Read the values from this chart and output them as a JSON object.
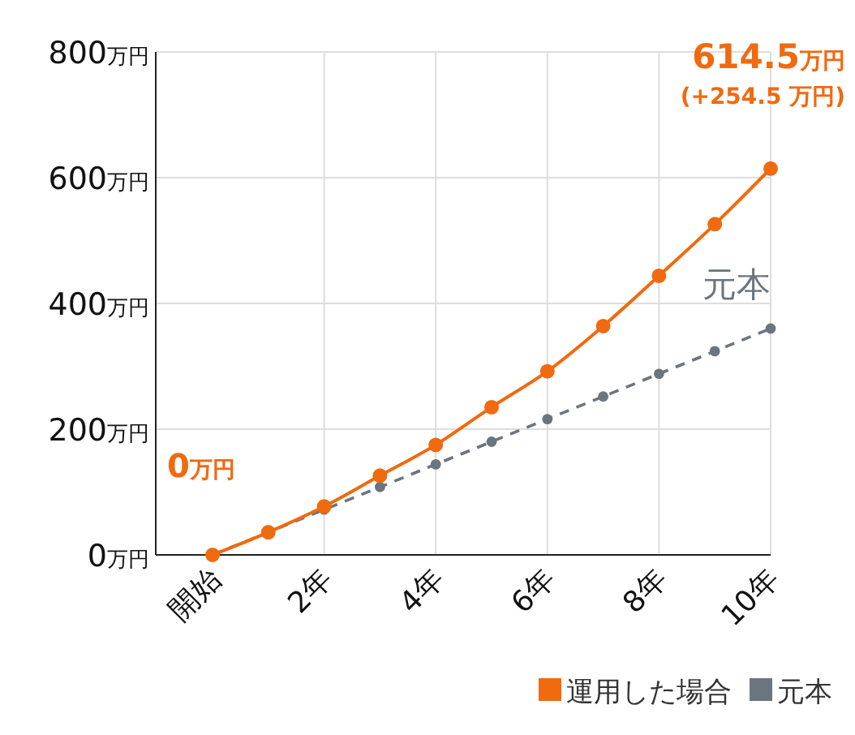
{
  "chart_data": {
    "type": "line",
    "categories": [
      "開始",
      null,
      "2年",
      null,
      "4年",
      null,
      "6年",
      null,
      "8年",
      null,
      "10年"
    ],
    "series": [
      {
        "name": "運用した場合",
        "color": "#f06a0f",
        "values": [
          0,
          36,
          77,
          126,
          175,
          235,
          292,
          364,
          444,
          526,
          614.5
        ],
        "line_style": "solid"
      },
      {
        "name": "元本",
        "color": "#6b7580",
        "values": [
          0,
          36,
          72,
          108,
          144,
          180,
          216,
          252,
          288,
          324,
          360
        ],
        "line_style": "dashed"
      }
    ],
    "ylim": [
      0,
      800
    ],
    "yticks": [
      {
        "value": 0,
        "label": "0万円"
      },
      {
        "value": 200,
        "label": "200万円"
      },
      {
        "value": 400,
        "label": "400万円"
      },
      {
        "value": 600,
        "label": "600万円"
      },
      {
        "value": 800,
        "label": "800万円"
      }
    ],
    "grid": true,
    "marker": "circle",
    "legend": "bottom right",
    "annotations": [
      {
        "text": "0万円",
        "x": "開始",
        "y": 0
      },
      {
        "text": "614.5万円",
        "x": "10年",
        "y": 614.5
      },
      {
        "text": "(+254.5 万円)",
        "x": "10年",
        "y": 614.5
      }
    ]
  }
}
